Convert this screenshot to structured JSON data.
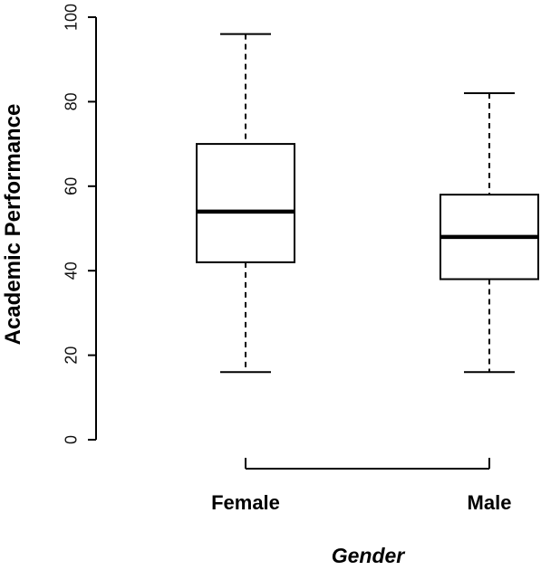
{
  "chart_data": {
    "type": "boxplot",
    "title": "",
    "xlabel": "Gender",
    "ylabel": "Academic Performance",
    "ylim": [
      0,
      100
    ],
    "yticks": [
      0,
      20,
      40,
      60,
      80,
      100
    ],
    "categories": [
      "Female",
      "Male"
    ],
    "boxes": [
      {
        "category": "Female",
        "min": 16,
        "q1": 42,
        "median": 54,
        "q3": 70,
        "max": 96
      },
      {
        "category": "Male",
        "min": 16,
        "q1": 38,
        "median": 48,
        "q3": 58,
        "max": 82
      }
    ],
    "grid": false,
    "legend": "none"
  },
  "colors": {
    "box_fill": "#ffffff",
    "stroke": "#000000"
  }
}
